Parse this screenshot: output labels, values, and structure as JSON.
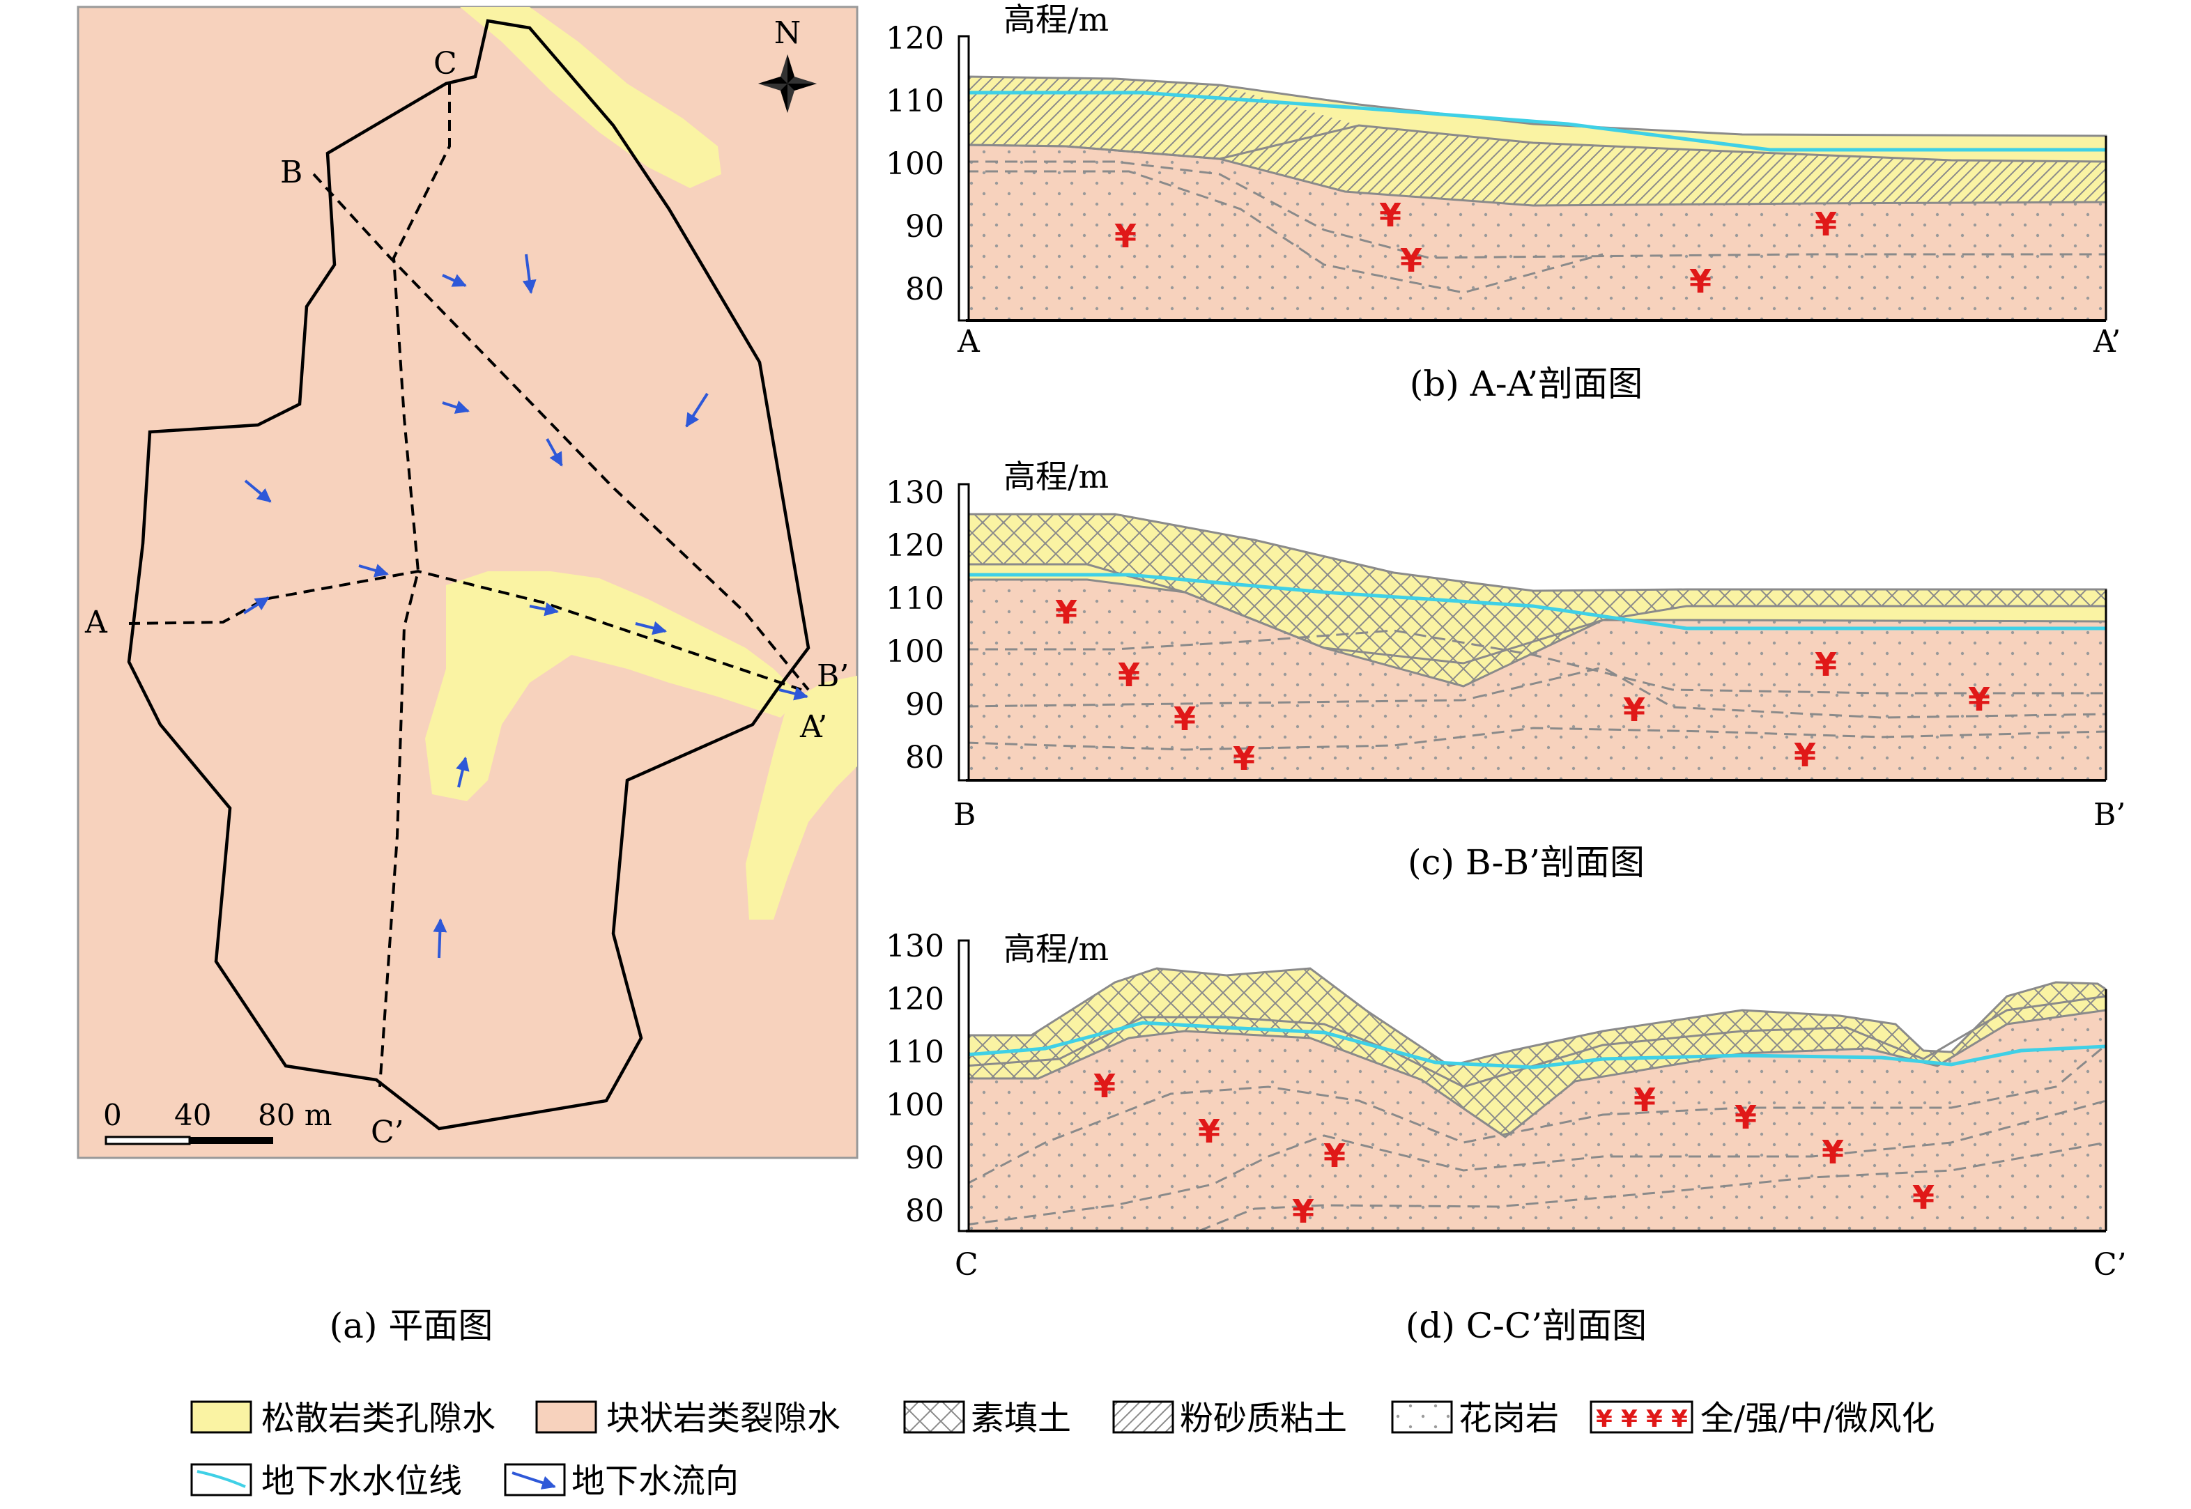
{
  "colors": {
    "loose_aquifer": "#faf3a3",
    "block_aquifer": "#f7d2bd",
    "water_table": "#3fd0e6",
    "flow_arrow": "#2e58d8",
    "weathering": "#e01818",
    "outline": "#000000",
    "layer_line": "#8a8a8a"
  },
  "plan": {
    "north_label": "N",
    "point_labels": {
      "a": "A",
      "a_end": "A’",
      "b": "B",
      "b_end": "B’",
      "c": "C",
      "c_end": "C’"
    },
    "scale": {
      "t0": "0",
      "t1": "40",
      "t2": "80 m"
    },
    "caption": "(a) 平面图"
  },
  "sections": [
    {
      "id": "b",
      "axis_title": "高程/m",
      "ticks": [
        "120",
        "110",
        "100",
        "90",
        "80"
      ],
      "start": "A",
      "end": "A’",
      "caption": "(b) A-A’剖面图"
    },
    {
      "id": "c",
      "axis_title": "高程/m",
      "ticks": [
        "130",
        "120",
        "110",
        "100",
        "90",
        "80"
      ],
      "start": "B",
      "end": "B’",
      "caption": "(c) B-B’剖面图"
    },
    {
      "id": "d",
      "axis_title": "高程/m",
      "ticks": [
        "130",
        "120",
        "110",
        "100",
        "90",
        "80"
      ],
      "start": "C",
      "end": "C’",
      "caption": "(d) C-C’剖面图"
    }
  ],
  "weathering_glyph": "¥",
  "legend": [
    {
      "key": "loose",
      "label": "松散岩类孔隙水"
    },
    {
      "key": "block",
      "label": "块状岩类裂隙水"
    },
    {
      "key": "fill",
      "label": "素填土"
    },
    {
      "key": "silt",
      "label": "粉砂质粘土"
    },
    {
      "key": "granite",
      "label": "花岗岩"
    },
    {
      "key": "weather",
      "label": "全/强/中/微风化"
    },
    {
      "key": "wt",
      "label": "地下水水位线"
    },
    {
      "key": "flow",
      "label": "地下水流向"
    }
  ]
}
